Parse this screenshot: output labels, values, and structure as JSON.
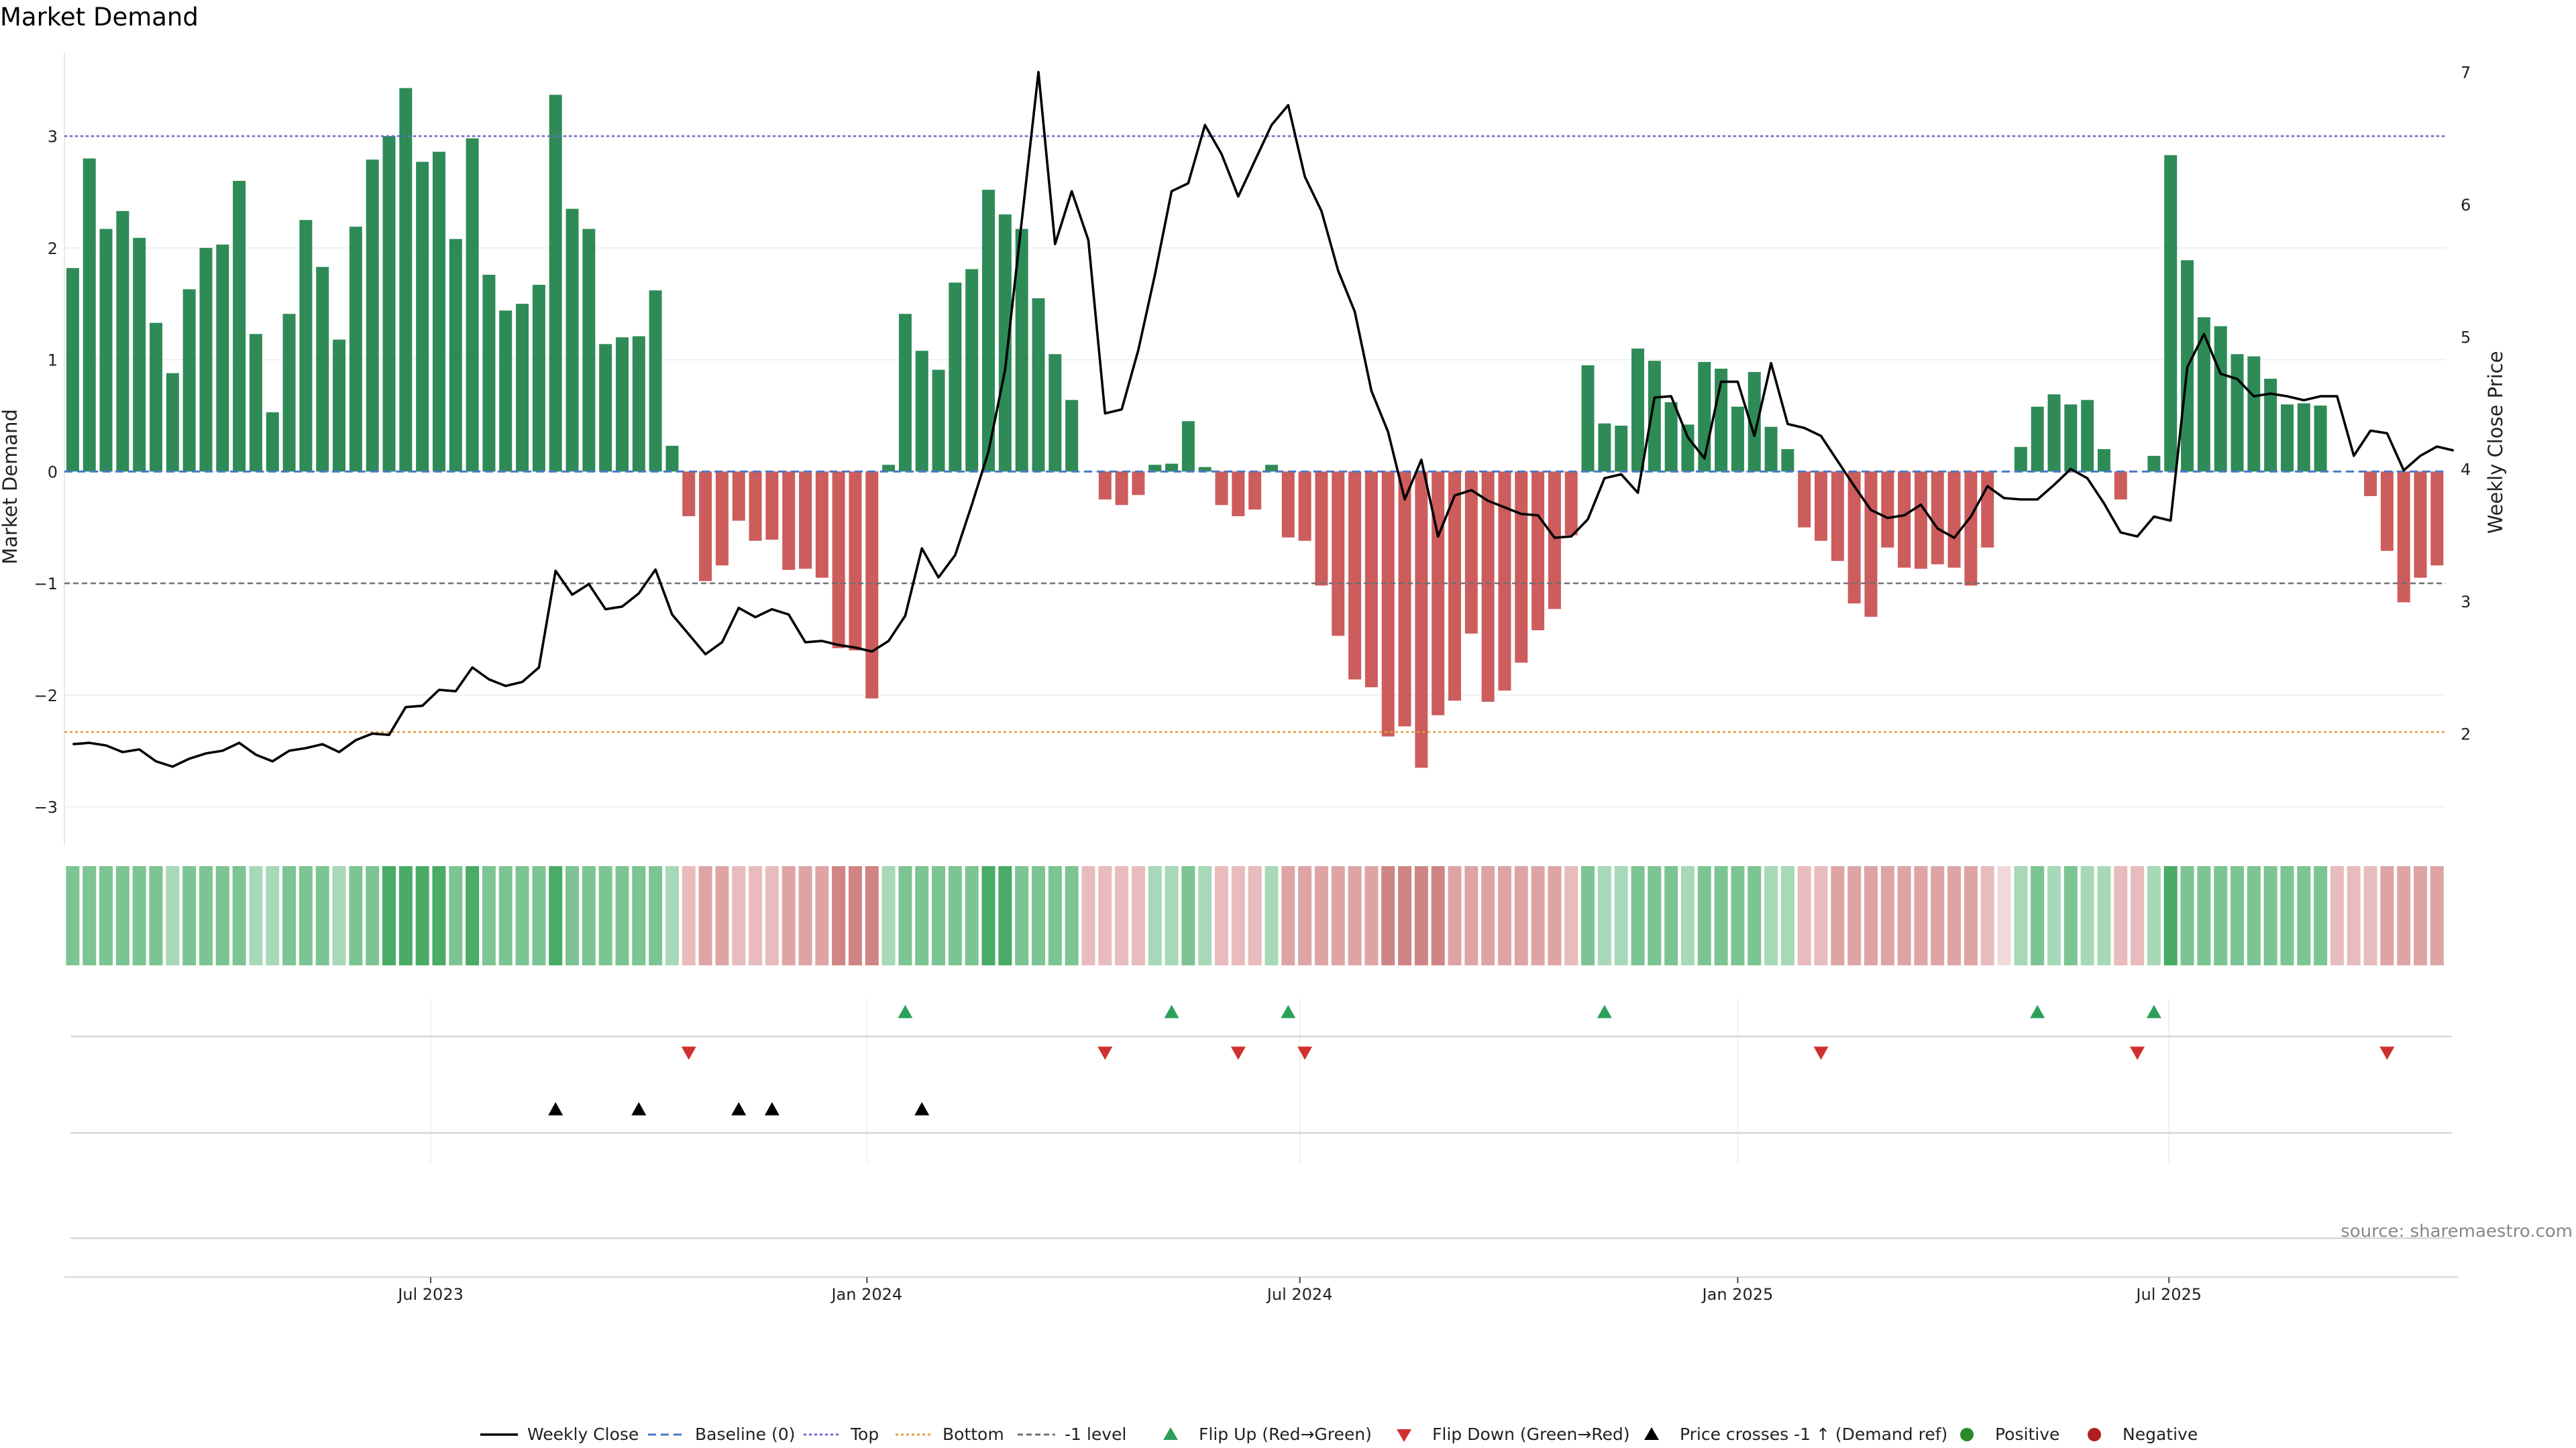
{
  "chart_data": {
    "type": "bar",
    "title": "Market Demand",
    "ylabel": "Market Demand",
    "y2label": "Weekly Close Price",
    "source": "source: sharemaestro.com",
    "ylim": [
      -3.35,
      3.75
    ],
    "y2lim": [
      1.15,
      7.15
    ],
    "yticks": [
      3,
      2,
      1,
      0,
      -1,
      -2,
      -3
    ],
    "y2ticks": [
      7,
      6,
      5,
      4,
      3,
      2
    ],
    "xticks": [
      {
        "label": "Jul 2023",
        "week": 21.5
      },
      {
        "label": "Jan 2024",
        "week": 47.7
      },
      {
        "label": "Jul 2024",
        "week": 73.7
      },
      {
        "label": "Jan 2025",
        "week": 100
      },
      {
        "label": "Jul 2025",
        "week": 125.9
      }
    ],
    "reference_lines": {
      "top": 3.0,
      "bottom": -2.33,
      "minus_one": -1.0,
      "baseline": 0
    },
    "colors": {
      "positive": "#2e8b57",
      "negative": "#cd5c5c",
      "price": "#000000",
      "top": "#6a6ad0",
      "bottom": "#e0a040",
      "minus_one": "#707070",
      "flip_up": "#2ca05a",
      "flip_down": "#d03030",
      "cross": "#000000",
      "dot_pos": "#2a8a2a",
      "dot_neg": "#b02020"
    },
    "demand": [
      1.82,
      2.8,
      2.17,
      2.33,
      2.09,
      1.33,
      0.88,
      1.63,
      2.0,
      2.03,
      2.6,
      1.23,
      0.53,
      1.41,
      2.25,
      1.83,
      1.18,
      2.19,
      2.79,
      3.0,
      3.43,
      2.77,
      2.86,
      2.08,
      2.98,
      1.76,
      1.44,
      1.5,
      1.67,
      3.37,
      2.35,
      2.17,
      1.14,
      1.2,
      1.21,
      1.62,
      0.23,
      -0.4,
      -0.98,
      -0.84,
      -0.44,
      -0.62,
      -0.61,
      -0.88,
      -0.87,
      -0.95,
      -1.58,
      -1.6,
      -2.03,
      0.06,
      1.41,
      1.08,
      0.91,
      1.69,
      1.81,
      2.52,
      2.3,
      2.17,
      1.55,
      1.05,
      0.64,
      0.0,
      -0.25,
      -0.3,
      -0.21,
      0.06,
      0.07,
      0.45,
      0.04,
      -0.3,
      -0.4,
      -0.34,
      0.06,
      -0.59,
      -0.62,
      -1.02,
      -1.47,
      -1.86,
      -1.93,
      -2.37,
      -2.28,
      -2.65,
      -2.18,
      -2.05,
      -1.45,
      -2.06,
      -1.96,
      -1.71,
      -1.42,
      -1.23,
      -0.57,
      0.95,
      0.43,
      0.41,
      1.1,
      0.99,
      0.62,
      0.42,
      0.98,
      0.92,
      0.58,
      0.89,
      0.4,
      0.2,
      -0.5,
      -0.62,
      -0.8,
      -1.18,
      -1.3,
      -0.68,
      -0.86,
      -0.87,
      -0.83,
      -0.86,
      -1.02,
      -0.68,
      0.0,
      0.22,
      0.58,
      0.69,
      0.6,
      0.64,
      0.2,
      -0.25,
      0.0,
      0.14,
      2.83,
      1.89,
      1.38,
      1.3,
      1.05,
      1.03,
      0.83,
      0.6,
      0.61,
      0.59,
      0.0,
      0.0,
      -0.22,
      -0.71,
      -1.17,
      -0.95,
      -0.84
    ],
    "price": [
      1.92,
      1.93,
      1.91,
      1.86,
      1.88,
      1.79,
      1.75,
      1.81,
      1.85,
      1.87,
      1.93,
      1.84,
      1.79,
      1.87,
      1.89,
      1.92,
      1.86,
      1.95,
      2.0,
      1.99,
      2.2,
      2.21,
      2.33,
      2.32,
      2.5,
      2.41,
      2.36,
      2.39,
      2.5,
      3.23,
      3.05,
      3.13,
      2.94,
      2.96,
      3.06,
      3.24,
      2.9,
      2.75,
      2.6,
      2.69,
      2.95,
      2.88,
      2.94,
      2.9,
      2.69,
      2.7,
      2.67,
      2.65,
      2.62,
      2.7,
      2.89,
      3.4,
      3.18,
      3.35,
      3.73,
      4.13,
      4.75,
      5.88,
      7.0,
      5.7,
      6.1,
      5.73,
      4.42,
      4.45,
      4.9,
      5.47,
      6.1,
      6.16,
      6.6,
      6.38,
      6.06,
      6.33,
      6.6,
      6.75,
      6.21,
      5.95,
      5.5,
      5.19,
      4.59,
      4.28,
      3.77,
      4.07,
      3.49,
      3.8,
      3.84,
      3.76,
      3.71,
      3.66,
      3.65,
      3.48,
      3.49,
      3.62,
      3.93,
      3.96,
      3.82,
      4.54,
      4.55,
      4.24,
      4.08,
      4.66,
      4.66,
      4.25,
      4.8,
      4.34,
      4.31,
      4.25,
      4.06,
      3.87,
      3.69,
      3.63,
      3.65,
      3.73,
      3.55,
      3.48,
      3.64,
      3.87,
      3.78,
      3.77,
      3.77,
      3.88,
      4.0,
      3.93,
      3.74,
      3.52,
      3.49,
      3.64,
      3.61,
      4.77,
      5.02,
      4.72,
      4.68,
      4.55,
      4.57,
      4.55,
      4.52,
      4.55,
      4.55,
      4.1,
      4.29,
      4.27,
      3.99,
      4.1,
      4.17,
      4.14
    ],
    "strip_intensity": [
      2,
      2,
      2,
      2,
      2,
      2,
      1,
      2,
      2,
      2,
      2,
      1,
      1,
      2,
      2,
      2,
      1,
      2,
      2,
      3,
      3,
      3,
      3,
      2,
      3,
      2,
      2,
      2,
      2,
      3,
      2,
      2,
      2,
      2,
      2,
      2,
      1,
      1,
      2,
      2,
      1,
      1,
      1,
      2,
      2,
      2,
      3,
      3,
      3,
      1,
      2,
      2,
      2,
      2,
      2,
      3,
      3,
      2,
      2,
      2,
      2,
      1,
      1,
      1,
      1,
      1,
      1,
      2,
      1,
      1,
      1,
      1,
      1,
      2,
      2,
      2,
      2,
      2,
      2,
      3,
      3,
      3,
      3,
      2,
      2,
      2,
      2,
      2,
      2,
      2,
      1,
      2,
      1,
      1,
      2,
      2,
      2,
      1,
      2,
      2,
      2,
      2,
      1,
      1,
      1,
      1,
      2,
      2,
      2,
      2,
      2,
      2,
      2,
      2,
      2,
      1,
      0,
      1,
      2,
      1,
      2,
      1,
      1,
      1,
      1,
      1,
      3,
      2,
      2,
      2,
      2,
      2,
      2,
      2,
      2,
      2,
      1,
      1,
      1,
      2,
      2,
      2,
      2
    ],
    "flip_up_weeks": [
      50,
      66,
      73,
      92,
      118,
      125
    ],
    "flip_down_weeks": [
      37,
      62,
      70,
      74,
      105,
      124,
      139
    ],
    "price_cross_weeks": [
      29,
      34,
      40,
      42,
      51
    ],
    "legend": [
      {
        "key": "line",
        "label": "Weekly Close"
      },
      {
        "key": "baseline",
        "label": "Baseline (0)"
      },
      {
        "key": "top",
        "label": "Top"
      },
      {
        "key": "bottom",
        "label": "Bottom"
      },
      {
        "key": "minus_one",
        "label": "-1 level"
      },
      {
        "key": "flip_up",
        "label": "Flip Up (Red→Green)"
      },
      {
        "key": "flip_down",
        "label": "Flip Down (Green→Red)"
      },
      {
        "key": "cross",
        "label": "Price crosses -1 ↑ (Demand ref)"
      },
      {
        "key": "dot_pos",
        "label": "Positive"
      },
      {
        "key": "dot_neg",
        "label": "Negative"
      }
    ]
  }
}
